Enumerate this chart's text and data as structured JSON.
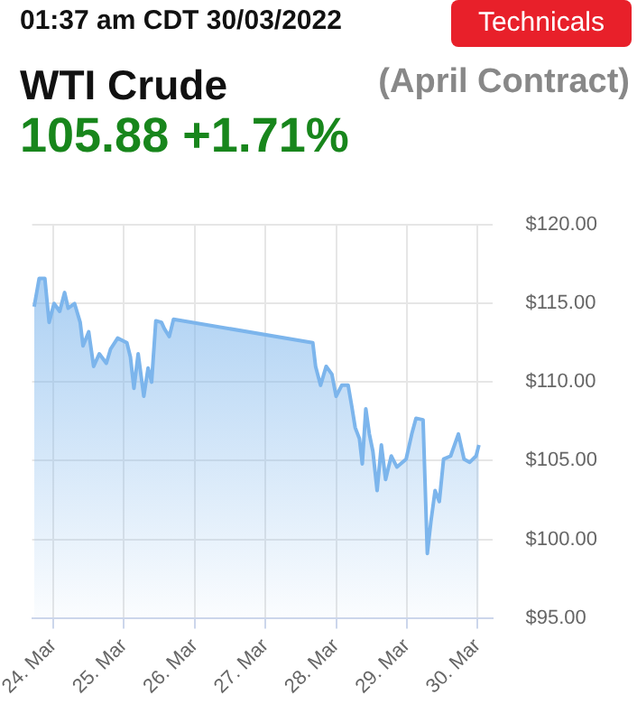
{
  "chart_data": {
    "type": "area",
    "title": "WTI Crude",
    "subtitle": "(April Contract)",
    "annotations": [
      "01:37 am CDT 30/03/2022",
      "105.88 +1.71%",
      "Technicals"
    ],
    "series": [
      {
        "color": "#7cb5ec",
        "x": [
          "2022-03-23T17:30",
          "2022-03-23T19:12",
          "2022-03-23T21:07",
          "2022-03-23T22:34",
          "2022-03-24T00:14",
          "2022-03-24T02:10",
          "2022-03-24T03:50",
          "2022-03-24T05:02",
          "2022-03-24T07:12",
          "2022-03-24T09:07",
          "2022-03-24T10:05",
          "2022-03-24T12:00",
          "2022-03-24T13:41",
          "2022-03-24T15:36",
          "2022-03-24T18:00",
          "2022-03-24T19:26",
          "2022-03-24T21:50",
          "2022-03-25T00:58",
          "2022-03-25T02:10",
          "2022-03-25T03:22",
          "2022-03-25T04:48",
          "2022-03-25T06:43",
          "2022-03-25T08:10",
          "2022-03-25T09:22",
          "2022-03-25T10:48",
          "2022-03-25T12:43",
          "2022-03-25T13:41",
          "2022-03-25T15:22",
          "2022-03-25T16:48",
          "2022-03-27T16:05",
          "2022-03-27T17:02",
          "2022-03-27T18:43",
          "2022-03-27T20:38",
          "2022-03-27T22:34",
          "2022-03-28T00:00",
          "2022-03-28T01:55",
          "2022-03-28T04:05",
          "2022-03-28T05:17",
          "2022-03-28T06:29",
          "2022-03-28T07:55",
          "2022-03-28T08:53",
          "2022-03-28T10:05",
          "2022-03-28T11:17",
          "2022-03-28T12:29",
          "2022-03-28T13:55",
          "2022-03-28T15:22",
          "2022-03-28T16:48",
          "2022-03-28T18:43",
          "2022-03-28T20:38",
          "2022-03-28T23:46",
          "2022-03-29T01:41",
          "2022-03-29T03:07",
          "2022-03-29T05:31",
          "2022-03-29T06:58",
          "2022-03-29T08:10",
          "2022-03-29T09:36",
          "2022-03-29T11:02",
          "2022-03-29T12:29",
          "2022-03-29T14:53",
          "2022-03-29T17:31",
          "2022-03-29T19:26",
          "2022-03-29T21:22",
          "2022-03-29T23:31",
          "2022-03-30T00:29"
        ],
        "values": [
          114.8,
          116.6,
          116.6,
          113.8,
          115.0,
          114.5,
          115.7,
          114.7,
          115.0,
          113.8,
          112.3,
          113.2,
          111.0,
          111.8,
          111.2,
          112.1,
          112.8,
          112.5,
          111.6,
          109.6,
          111.8,
          109.1,
          110.9,
          110.0,
          113.9,
          113.8,
          113.4,
          112.9,
          114.0,
          112.5,
          111.0,
          109.8,
          111.0,
          110.5,
          109.1,
          109.8,
          109.8,
          108.5,
          107.1,
          106.4,
          104.8,
          108.3,
          106.7,
          105.6,
          103.1,
          106.0,
          103.8,
          105.3,
          104.6,
          105.1,
          106.7,
          107.7,
          107.6,
          99.1,
          101.1,
          103.1,
          102.4,
          105.1,
          105.3,
          106.7,
          105.1,
          104.9,
          105.3,
          106.0
        ]
      }
    ],
    "xlim": [
      "2022-03-23T16:48",
      "2022-03-30T05:17"
    ],
    "xticks": [
      {
        "value": "2022-03-24",
        "label": "24. Mar"
      },
      {
        "value": "2022-03-25",
        "label": "25. Mar"
      },
      {
        "value": "2022-03-26",
        "label": "26. Mar"
      },
      {
        "value": "2022-03-27",
        "label": "27. Mar"
      },
      {
        "value": "2022-03-28",
        "label": "28. Mar"
      },
      {
        "value": "2022-03-29",
        "label": "29. Mar"
      },
      {
        "value": "2022-03-30",
        "label": "30. Mar"
      }
    ],
    "ylim": [
      95,
      120
    ],
    "yticks": [
      {
        "value": 95,
        "label": "$95.00"
      },
      {
        "value": 100,
        "label": "$100.00"
      },
      {
        "value": 105,
        "label": "$105.00"
      },
      {
        "value": 110,
        "label": "$110.00"
      },
      {
        "value": 115,
        "label": "$115.00"
      },
      {
        "value": 120,
        "label": "$120.00"
      }
    ],
    "grid": true,
    "marker": "none"
  }
}
